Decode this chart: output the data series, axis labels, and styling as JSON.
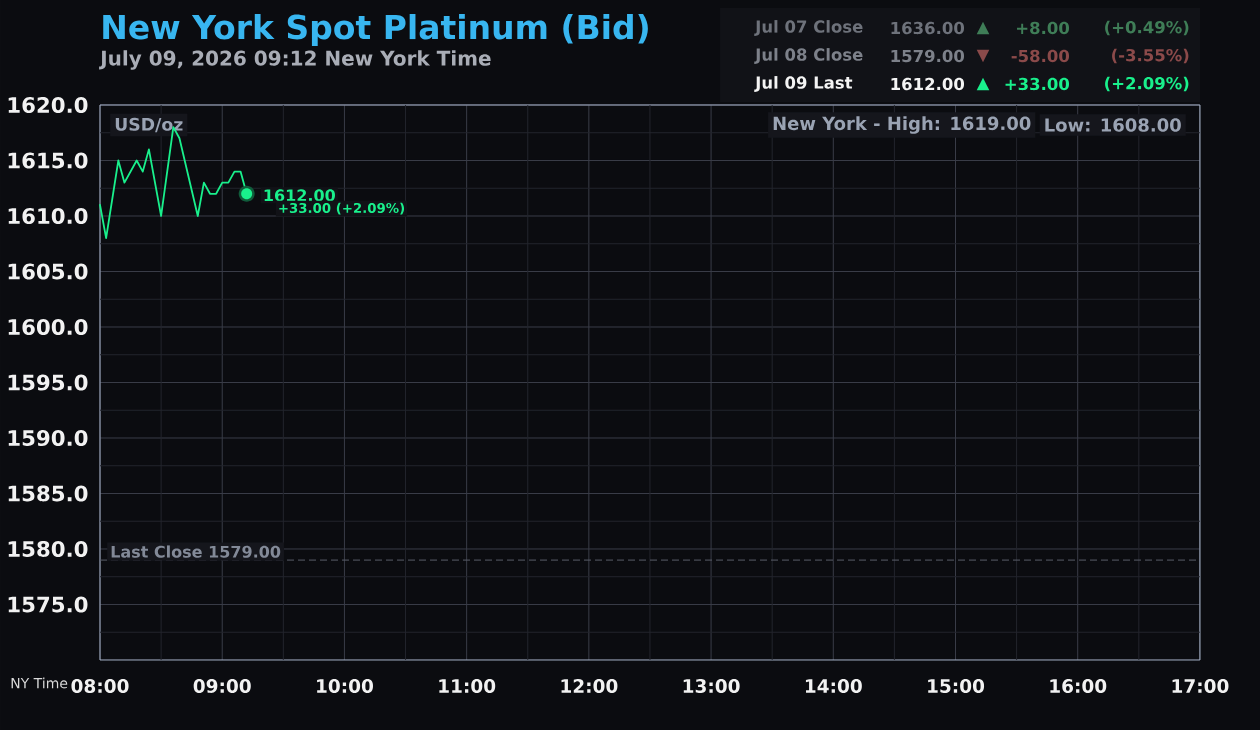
{
  "chart_data": {
    "type": "line",
    "title": "New York Spot Platinum (Bid)",
    "subtitle": "July 09, 2026 09:12 New York Time",
    "xlabel": "NY Time",
    "ylabel": "USD/oz",
    "x": [
      8.0,
      8.05,
      8.15,
      8.2,
      8.3,
      8.35,
      8.4,
      8.5,
      8.6,
      8.65,
      8.8,
      8.85,
      8.9,
      8.95,
      9.0,
      9.05,
      9.1,
      9.15,
      9.2
    ],
    "values": [
      1611,
      1608,
      1615,
      1613,
      1615,
      1614,
      1616,
      1610,
      1618,
      1617,
      1610,
      1613,
      1612,
      1612,
      1613,
      1613,
      1614,
      1614,
      1612
    ],
    "color": "#19F08C",
    "xlim": [
      8,
      17
    ],
    "ylim": [
      1570,
      1620
    ],
    "xticks": [
      {
        "value": 8,
        "label": "08:00"
      },
      {
        "value": 8.5,
        "label": null
      },
      {
        "value": 9,
        "label": "09:00"
      },
      {
        "value": 9.5,
        "label": null
      },
      {
        "value": 10,
        "label": "10:00"
      },
      {
        "value": 10.5,
        "label": null
      },
      {
        "value": 11,
        "label": "11:00"
      },
      {
        "value": 11.5,
        "label": null
      },
      {
        "value": 12,
        "label": "12:00"
      },
      {
        "value": 12.5,
        "label": null
      },
      {
        "value": 13,
        "label": "13:00"
      },
      {
        "value": 13.5,
        "label": null
      },
      {
        "value": 14,
        "label": "14:00"
      },
      {
        "value": 14.5,
        "label": null
      },
      {
        "value": 15,
        "label": "15:00"
      },
      {
        "value": 15.5,
        "label": null
      },
      {
        "value": 16,
        "label": "16:00"
      },
      {
        "value": 16.5,
        "label": null
      },
      {
        "value": 17,
        "label": "17:00"
      }
    ],
    "yticks": [
      {
        "value": 1572.5,
        "label": null
      },
      {
        "value": 1575,
        "label": "1575.0"
      },
      {
        "value": 1577.5,
        "label": null
      },
      {
        "value": 1580,
        "label": "1580.0"
      },
      {
        "value": 1582.5,
        "label": null
      },
      {
        "value": 1585,
        "label": "1585.0"
      },
      {
        "value": 1587.5,
        "label": null
      },
      {
        "value": 1590,
        "label": "1590.0"
      },
      {
        "value": 1592.5,
        "label": null
      },
      {
        "value": 1595,
        "label": "1595.0"
      },
      {
        "value": 1597.5,
        "label": null
      },
      {
        "value": 1600,
        "label": "1600.0"
      },
      {
        "value": 1602.5,
        "label": null
      },
      {
        "value": 1605,
        "label": "1605.0"
      },
      {
        "value": 1607.5,
        "label": null
      },
      {
        "value": 1610,
        "label": "1610.0"
      },
      {
        "value": 1612.5,
        "label": null
      },
      {
        "value": 1615,
        "label": "1615.0"
      },
      {
        "value": 1617.5,
        "label": null
      },
      {
        "value": 1620,
        "label": "1620.0"
      }
    ],
    "grid": true,
    "ref_lines": [
      {
        "axis": "y",
        "value": 1579,
        "label": "Last Close 1579.00",
        "color": "#5A5E6A",
        "line_style": "dashed"
      }
    ],
    "annotations": [
      {
        "text": "1612.00",
        "x": 9.2,
        "y": 1612
      },
      "+33.00 (+2.09%)",
      "New York - High: 1619.00",
      "Low: 1608.00",
      "Jul 07 Close",
      "1636.00",
      "▲",
      "+8.00",
      "(+0.49%)",
      "Jul 08 Close",
      "1579.00",
      "▼",
      "-58.00",
      "(-3.55%)",
      "Jul 09 Last",
      "1612.00",
      "▲",
      "+33.00",
      "(+2.09%)"
    ]
  }
}
